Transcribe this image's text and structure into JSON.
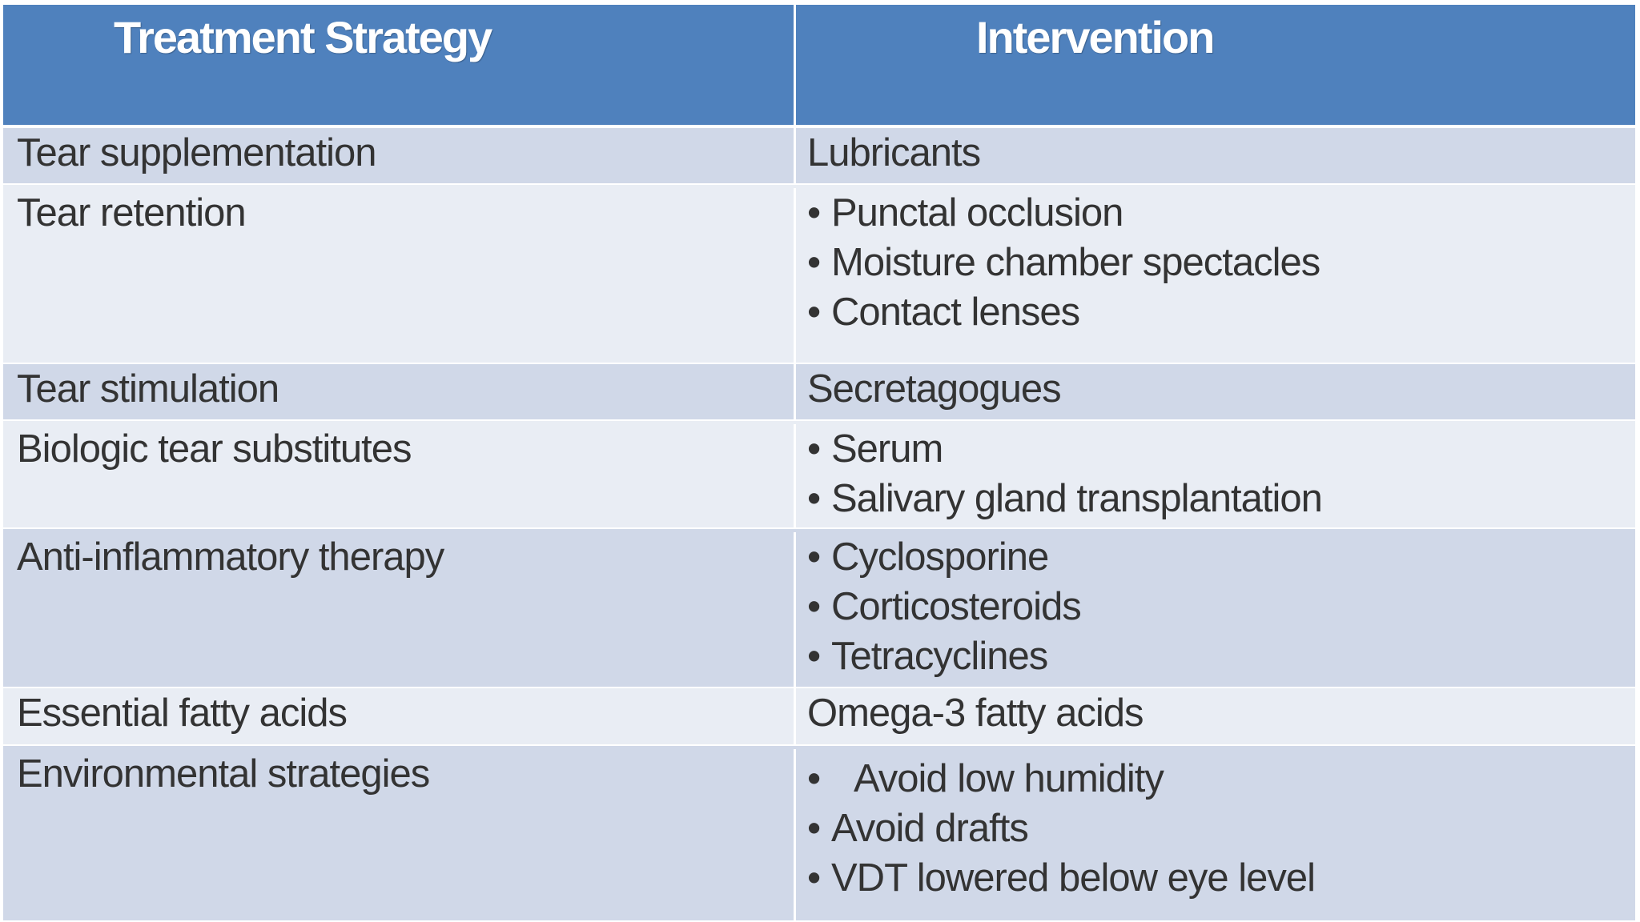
{
  "header": {
    "col1": "Treatment Strategy",
    "col2": "Intervention"
  },
  "rows": [
    {
      "strategy": "Tear supplementation",
      "interventions": [
        "Lubricants"
      ],
      "bulleted": false
    },
    {
      "strategy": "Tear retention",
      "interventions": [
        "Punctal occlusion",
        "Moisture chamber spectacles",
        "Contact lenses"
      ],
      "bulleted": true
    },
    {
      "strategy": "Tear stimulation",
      "interventions": [
        "Secretagogues"
      ],
      "bulleted": false
    },
    {
      "strategy": "Biologic tear substitutes",
      "interventions": [
        "Serum",
        "Salivary gland transplantation"
      ],
      "bulleted": true
    },
    {
      "strategy": "Anti-inflammatory therapy",
      "interventions": [
        "Cyclosporine",
        "Corticosteroids",
        "Tetracyclines"
      ],
      "bulleted": true
    },
    {
      "strategy": "Essential fatty acids",
      "interventions": [
        "Omega-3 fatty acids"
      ],
      "bulleted": false
    },
    {
      "strategy": "Environmental strategies",
      "interventions": [
        "Avoid low humidity",
        "Avoid drafts",
        "VDT lowered below eye level"
      ],
      "bulleted": true
    }
  ],
  "bullet_glyph": "•",
  "colors": {
    "header_bg": "#4f81bd",
    "row_dark": "#d0d8e8",
    "row_light": "#e9edf4",
    "text": "#333333"
  }
}
